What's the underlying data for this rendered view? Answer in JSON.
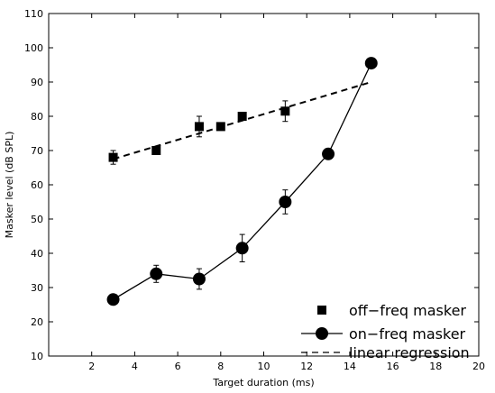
{
  "chart_data": {
    "type": "line",
    "xlabel": "Target duration (ms)",
    "ylabel": "Masker level (dB SPL)",
    "xlim": [
      0,
      20
    ],
    "ylim": [
      10,
      110
    ],
    "xticks": [
      2,
      4,
      6,
      8,
      10,
      12,
      14,
      16,
      18,
      20
    ],
    "yticks": [
      10,
      20,
      30,
      40,
      50,
      60,
      70,
      80,
      90,
      100,
      110
    ],
    "grid": false,
    "legend_position": "bottom-right",
    "series": [
      {
        "name": "off−freq masker",
        "marker": "square",
        "line": "none",
        "x": [
          3,
          5,
          7,
          8,
          9,
          11
        ],
        "y": [
          68,
          70,
          77,
          77,
          80,
          81.5
        ],
        "err": [
          2,
          0,
          3,
          0,
          0,
          3
        ]
      },
      {
        "name": "on−freq masker",
        "marker": "circle",
        "line": "solid",
        "x": [
          3,
          5,
          7,
          9,
          11,
          13,
          15
        ],
        "y": [
          26.5,
          34,
          32.5,
          41.5,
          55,
          69,
          95.5
        ],
        "err": [
          0,
          2.5,
          3,
          4,
          3.5,
          0,
          0
        ]
      },
      {
        "name": "linear regression",
        "marker": "none",
        "line": "dashed",
        "x": [
          3,
          15
        ],
        "y": [
          67.5,
          90
        ]
      }
    ]
  }
}
